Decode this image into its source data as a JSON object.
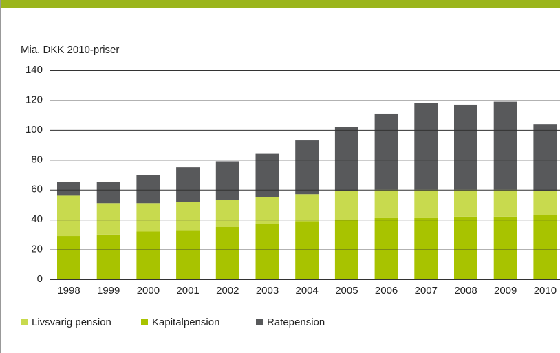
{
  "chart_data": {
    "type": "stacked_bar",
    "y_axis_label": "Mia. DKK 2010-priser",
    "categories": [
      "1998",
      "1999",
      "2000",
      "2001",
      "2002",
      "2003",
      "2004",
      "2005",
      "2006",
      "2007",
      "2008",
      "2009",
      "2010"
    ],
    "series": [
      {
        "name": "Kapitalpension",
        "color": "#a8c300",
        "values": [
          29,
          30,
          32,
          33,
          35,
          37,
          39,
          40,
          41,
          41,
          42,
          42,
          43
        ]
      },
      {
        "name": "Livsvarig pension",
        "color": "#c8da4e",
        "values": [
          27,
          21,
          19,
          19,
          18,
          18,
          18,
          19,
          19,
          19,
          18,
          18,
          16
        ]
      },
      {
        "name": "Ratepension",
        "color": "#58595b",
        "values": [
          9,
          14,
          19,
          23,
          26,
          29,
          36,
          43,
          51,
          58,
          57,
          59,
          45
        ]
      }
    ],
    "ylim": [
      0,
      140
    ],
    "yticks": [
      0,
      20,
      40,
      60,
      80,
      100,
      120,
      140
    ],
    "grid": true
  }
}
